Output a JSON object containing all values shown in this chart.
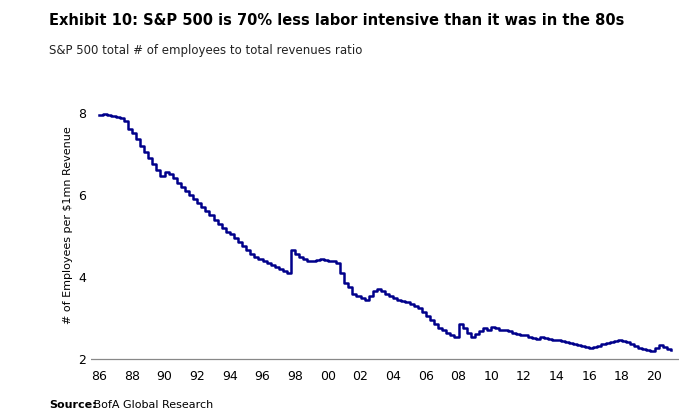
{
  "title": "Exhibit 10: S&P 500 is 70% less labor intensive than it was in the 80s",
  "subtitle": "S&P 500 total # of employees to total revenues ratio",
  "ylabel": "# of Employees per $1mn Revenue",
  "source_bold": "Source:",
  "source_normal": " BofA Global Research",
  "line_color": "#00008B",
  "background_color": "#ffffff",
  "xlim": [
    1985.5,
    2021.5
  ],
  "ylim": [
    1.85,
    8.7
  ],
  "yticks": [
    2,
    4,
    6,
    8
  ],
  "xtick_labels": [
    "86",
    "88",
    "90",
    "92",
    "94",
    "96",
    "98",
    "00",
    "02",
    "04",
    "06",
    "08",
    "10",
    "12",
    "14",
    "16",
    "18",
    "20"
  ],
  "xtick_values": [
    1986,
    1988,
    1990,
    1992,
    1994,
    1996,
    1998,
    2000,
    2002,
    2004,
    2006,
    2008,
    2010,
    2012,
    2014,
    2016,
    2018,
    2020
  ],
  "years": [
    1986.0,
    1986.25,
    1986.5,
    1986.75,
    1987.0,
    1987.25,
    1987.5,
    1987.75,
    1988.0,
    1988.25,
    1988.5,
    1988.75,
    1989.0,
    1989.25,
    1989.5,
    1989.75,
    1990.0,
    1990.25,
    1990.5,
    1990.75,
    1991.0,
    1991.25,
    1991.5,
    1991.75,
    1992.0,
    1992.25,
    1992.5,
    1992.75,
    1993.0,
    1993.25,
    1993.5,
    1993.75,
    1994.0,
    1994.25,
    1994.5,
    1994.75,
    1995.0,
    1995.25,
    1995.5,
    1995.75,
    1996.0,
    1996.25,
    1996.5,
    1996.75,
    1997.0,
    1997.25,
    1997.5,
    1997.75,
    1998.0,
    1998.25,
    1998.5,
    1998.75,
    1999.0,
    1999.25,
    1999.5,
    1999.75,
    2000.0,
    2000.25,
    2000.5,
    2000.75,
    2001.0,
    2001.25,
    2001.5,
    2001.75,
    2002.0,
    2002.25,
    2002.5,
    2002.75,
    2003.0,
    2003.25,
    2003.5,
    2003.75,
    2004.0,
    2004.25,
    2004.5,
    2004.75,
    2005.0,
    2005.25,
    2005.5,
    2005.75,
    2006.0,
    2006.25,
    2006.5,
    2006.75,
    2007.0,
    2007.25,
    2007.5,
    2007.75,
    2008.0,
    2008.25,
    2008.5,
    2008.75,
    2009.0,
    2009.25,
    2009.5,
    2009.75,
    2010.0,
    2010.25,
    2010.5,
    2010.75,
    2011.0,
    2011.25,
    2011.5,
    2011.75,
    2012.0,
    2012.25,
    2012.5,
    2012.75,
    2013.0,
    2013.25,
    2013.5,
    2013.75,
    2014.0,
    2014.25,
    2014.5,
    2014.75,
    2015.0,
    2015.25,
    2015.5,
    2015.75,
    2016.0,
    2016.25,
    2016.5,
    2016.75,
    2017.0,
    2017.25,
    2017.5,
    2017.75,
    2018.0,
    2018.25,
    2018.5,
    2018.75,
    2019.0,
    2019.25,
    2019.5,
    2019.75,
    2020.0,
    2020.25,
    2020.5,
    2020.75,
    2021.0
  ],
  "values": [
    7.95,
    7.98,
    7.95,
    7.92,
    7.9,
    7.88,
    7.8,
    7.6,
    7.5,
    7.35,
    7.2,
    7.05,
    6.9,
    6.75,
    6.6,
    6.45,
    6.55,
    6.5,
    6.4,
    6.3,
    6.2,
    6.1,
    6.0,
    5.9,
    5.8,
    5.7,
    5.6,
    5.5,
    5.4,
    5.3,
    5.2,
    5.1,
    5.05,
    4.95,
    4.85,
    4.75,
    4.65,
    4.55,
    4.5,
    4.45,
    4.4,
    4.35,
    4.3,
    4.25,
    4.2,
    4.15,
    4.1,
    4.65,
    4.55,
    4.5,
    4.45,
    4.4,
    4.38,
    4.42,
    4.45,
    4.42,
    4.4,
    4.38,
    4.35,
    4.1,
    3.85,
    3.75,
    3.6,
    3.55,
    3.5,
    3.45,
    3.55,
    3.65,
    3.7,
    3.65,
    3.6,
    3.55,
    3.5,
    3.45,
    3.42,
    3.4,
    3.35,
    3.3,
    3.25,
    3.15,
    3.05,
    2.95,
    2.85,
    2.75,
    2.7,
    2.65,
    2.6,
    2.55,
    2.85,
    2.75,
    2.65,
    2.55,
    2.62,
    2.68,
    2.75,
    2.72,
    2.78,
    2.75,
    2.72,
    2.7,
    2.68,
    2.65,
    2.62,
    2.6,
    2.58,
    2.55,
    2.52,
    2.5,
    2.55,
    2.52,
    2.5,
    2.48,
    2.46,
    2.44,
    2.42,
    2.4,
    2.38,
    2.35,
    2.32,
    2.3,
    2.28,
    2.3,
    2.32,
    2.38,
    2.4,
    2.42,
    2.45,
    2.48,
    2.45,
    2.42,
    2.38,
    2.32,
    2.28,
    2.25,
    2.22,
    2.2,
    2.28,
    2.35,
    2.3,
    2.25,
    2.22
  ]
}
